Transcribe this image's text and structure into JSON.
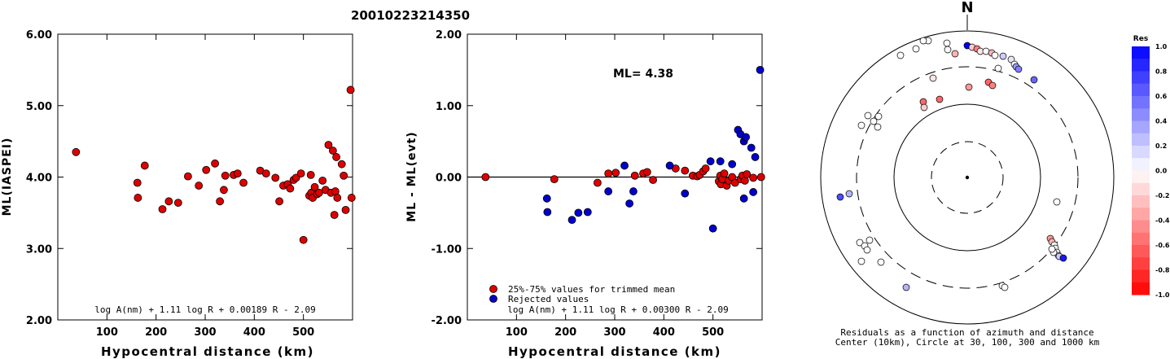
{
  "title": "20010223214350",
  "chart_data": [
    {
      "type": "scatter",
      "ylabel": "ML(IASPEI)",
      "xlabel": "Hypocentral distance (km)",
      "xlim": [
        0,
        600
      ],
      "ylim": [
        2.0,
        6.0
      ],
      "xticks": [
        "100",
        "200",
        "300",
        "400",
        "500"
      ],
      "yticks": [
        "2.00",
        "3.00",
        "4.00",
        "5.00",
        "6.00"
      ],
      "formula": "log A(nm) + 1.11 log R + 0.00189 R - 2.09",
      "color": "#dd0000",
      "points": [
        [
          37,
          4.35
        ],
        [
          162,
          3.92
        ],
        [
          163,
          3.71
        ],
        [
          177,
          4.16
        ],
        [
          213,
          3.55
        ],
        [
          226,
          3.66
        ],
        [
          245,
          3.64
        ],
        [
          265,
          4.01
        ],
        [
          287,
          3.88
        ],
        [
          302,
          4.1
        ],
        [
          320,
          4.19
        ],
        [
          330,
          3.66
        ],
        [
          338,
          3.82
        ],
        [
          341,
          4.02
        ],
        [
          358,
          4.03
        ],
        [
          366,
          4.05
        ],
        [
          378,
          3.92
        ],
        [
          412,
          4.09
        ],
        [
          424,
          4.05
        ],
        [
          443,
          3.99
        ],
        [
          451,
          3.66
        ],
        [
          459,
          3.88
        ],
        [
          468,
          3.9
        ],
        [
          473,
          3.84
        ],
        [
          480,
          3.96
        ],
        [
          485,
          3.99
        ],
        [
          495,
          4.05
        ],
        [
          500,
          3.12
        ],
        [
          512,
          3.74
        ],
        [
          515,
          4.03
        ],
        [
          516,
          3.78
        ],
        [
          519,
          3.71
        ],
        [
          523,
          3.86
        ],
        [
          528,
          3.76
        ],
        [
          532,
          3.78
        ],
        [
          539,
          3.95
        ],
        [
          545,
          3.82
        ],
        [
          551,
          4.45
        ],
        [
          556,
          3.78
        ],
        [
          560,
          4.37
        ],
        [
          563,
          3.47
        ],
        [
          565,
          3.8
        ],
        [
          567,
          4.28
        ],
        [
          569,
          3.71
        ],
        [
          578,
          4.18
        ],
        [
          582,
          4.02
        ],
        [
          586,
          3.54
        ],
        [
          596,
          5.22
        ],
        [
          598,
          3.71
        ]
      ]
    },
    {
      "type": "scatter",
      "ylabel": "ML - ML(evt)",
      "xlabel": "Hypocentral distance (km)",
      "xlim": [
        0,
        600
      ],
      "ylim": [
        -2.0,
        2.0
      ],
      "xticks": [
        "100",
        "200",
        "300",
        "400",
        "500"
      ],
      "yticks": [
        "-2.00",
        "-1.00",
        "0.00",
        "1.00",
        "2.00"
      ],
      "annotation": "ML= 4.38",
      "formula": "log A(nm) + 1.11 log R + 0.00300 R - 2.09",
      "legend": [
        {
          "label": "25%-75% values for trimmed mean",
          "color": "#dd0000"
        },
        {
          "label": "Rejected values",
          "color": "#0000cc"
        }
      ],
      "series": [
        {
          "name": "25%-75% values for trimmed mean",
          "color": "#dd0000",
          "points": [
            [
              37,
              0.0
            ],
            [
              177,
              -0.03
            ],
            [
              265,
              -0.08
            ],
            [
              287,
              0.05
            ],
            [
              302,
              0.06
            ],
            [
              341,
              0.02
            ],
            [
              358,
              0.05
            ],
            [
              366,
              0.07
            ],
            [
              378,
              -0.04
            ],
            [
              424,
              0.12
            ],
            [
              443,
              0.09
            ],
            [
              459,
              0.02
            ],
            [
              468,
              0.01
            ],
            [
              473,
              0.03
            ],
            [
              480,
              0.08
            ],
            [
              485,
              0.12
            ],
            [
              512,
              -0.06
            ],
            [
              515,
              0.02
            ],
            [
              516,
              -0.1
            ],
            [
              519,
              -0.03
            ],
            [
              523,
              0.05
            ],
            [
              528,
              -0.12
            ],
            [
              532,
              -0.05
            ],
            [
              539,
              0.0
            ],
            [
              545,
              -0.08
            ],
            [
              556,
              -0.03
            ],
            [
              560,
              0.02
            ],
            [
              565,
              -0.05
            ],
            [
              569,
              0.04
            ],
            [
              582,
              -0.01
            ],
            [
              598,
              0.0
            ]
          ]
        },
        {
          "name": "Rejected values",
          "color": "#0000cc",
          "points": [
            [
              162,
              -0.3
            ],
            [
              163,
              -0.49
            ],
            [
              213,
              -0.6
            ],
            [
              226,
              -0.5
            ],
            [
              245,
              -0.49
            ],
            [
              287,
              -0.2
            ],
            [
              320,
              0.16
            ],
            [
              330,
              -0.37
            ],
            [
              338,
              -0.2
            ],
            [
              412,
              0.16
            ],
            [
              443,
              -0.23
            ],
            [
              495,
              0.22
            ],
            [
              500,
              -0.72
            ],
            [
              515,
              0.22
            ],
            [
              539,
              0.18
            ],
            [
              551,
              0.66
            ],
            [
              556,
              0.6
            ],
            [
              563,
              0.5
            ],
            [
              563,
              -0.3
            ],
            [
              567,
              0.56
            ],
            [
              578,
              0.41
            ],
            [
              582,
              -0.21
            ],
            [
              586,
              0.28
            ],
            [
              596,
              1.5
            ]
          ]
        }
      ]
    },
    {
      "type": "scatter",
      "north_label": "N",
      "caption_line1": "Residuals as a function of azimuth and distance",
      "caption_line2": "Center (10km), Circle at 30, 100, 300 and 1000 km",
      "colorbar": {
        "title": "Res",
        "ticks": [
          "1.0",
          "0.8",
          "0.6",
          "0.4",
          "0.2",
          "0.0",
          "-0.2",
          "-0.4",
          "-0.6",
          "-0.8",
          "-1.0"
        ]
      },
      "points": [
        [
          0,
          162,
          1.0
        ],
        [
          -25,
          165,
          0.0
        ],
        [
          -48,
          168,
          0.0
        ],
        [
          -54,
          168,
          0.0
        ],
        [
          -63,
          158,
          0.0
        ],
        [
          -82,
          150,
          0.0
        ],
        [
          -24,
          157,
          0.0
        ],
        [
          -15,
          152,
          -0.3
        ],
        [
          6,
          160,
          -0.2
        ],
        [
          12,
          158,
          -0.5
        ],
        [
          16,
          155,
          -0.1
        ],
        [
          23,
          155,
          0.0
        ],
        [
          30,
          153,
          -0.3
        ],
        [
          34,
          150,
          0.0
        ],
        [
          44,
          149,
          0.2
        ],
        [
          54,
          145,
          0.1
        ],
        [
          58,
          139,
          0.0
        ],
        [
          60,
          136,
          0.4
        ],
        [
          63,
          133,
          0.5
        ],
        [
          82,
          120,
          0.6
        ],
        [
          -42,
          122,
          -0.1
        ],
        [
          2,
          111,
          -0.4
        ],
        [
          26,
          117,
          -0.6
        ],
        [
          31,
          113,
          -0.5
        ],
        [
          38,
          134,
          0.0
        ],
        [
          -34,
          96,
          -0.6
        ],
        [
          -54,
          93,
          -0.6
        ],
        [
          -53,
          86,
          -0.2
        ],
        [
          -109,
          75,
          0.0
        ],
        [
          -110,
          62,
          0.0
        ],
        [
          -115,
          69,
          0.0
        ],
        [
          -130,
          64,
          0.0
        ],
        [
          -122,
          76,
          0.0
        ],
        [
          -156,
          -24,
          0.7
        ],
        [
          -145,
          -20,
          0.3
        ],
        [
          -132,
          -80,
          0.0
        ],
        [
          -126,
          -84,
          0.0
        ],
        [
          -120,
          -77,
          0.0
        ],
        [
          -123,
          -89,
          0.0
        ],
        [
          -130,
          -103,
          0.0
        ],
        [
          -106,
          -104,
          0.0
        ],
        [
          -75,
          -135,
          0.3
        ],
        [
          43,
          -133,
          0.0
        ],
        [
          46,
          -135,
          0.0
        ],
        [
          110,
          -30,
          0.0
        ],
        [
          102,
          -75,
          -0.4
        ],
        [
          104,
          -79,
          -0.3
        ],
        [
          107,
          -83,
          0.0
        ],
        [
          108,
          -87,
          0.0
        ],
        [
          110,
          -92,
          0.0
        ],
        [
          112,
          -96,
          0.0
        ],
        [
          106,
          -92,
          0.0
        ],
        [
          104,
          -88,
          0.0
        ],
        [
          113,
          -97,
          0.2
        ],
        [
          118,
          -99,
          0.9
        ]
      ]
    }
  ]
}
